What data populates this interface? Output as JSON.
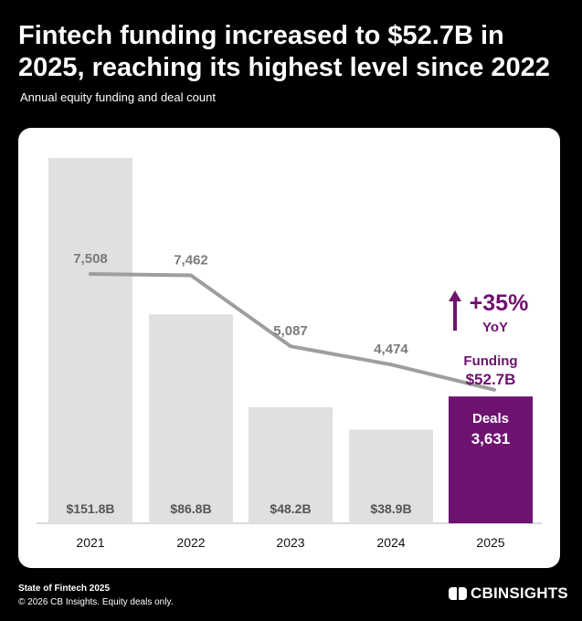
{
  "header": {
    "title": "Fintech funding increased to $52.7B in 2025, reaching its highest level since 2022",
    "subtitle": "Annual equity funding and deal count"
  },
  "colors": {
    "background": "#000000",
    "bar": "#e0e0e0",
    "highlight_bar": "#6e1270",
    "line": "#9e9e9e",
    "label_gray": "#7a7a7a",
    "accent_text": "#6e1270"
  },
  "chart_data": {
    "type": "bar",
    "title": "Annual equity funding and deal count",
    "categories": [
      "2021",
      "2022",
      "2023",
      "2024",
      "2025"
    ],
    "series": [
      {
        "name": "Funding ($B)",
        "type": "bar",
        "values": [
          151.8,
          86.8,
          48.2,
          38.9,
          52.7
        ],
        "labels": [
          "$151.8B",
          "$86.8B",
          "$48.2B",
          "$38.9B",
          "$52.7B"
        ]
      },
      {
        "name": "Deals",
        "type": "line",
        "values": [
          7508,
          7462,
          5087,
          4474,
          3631
        ],
        "labels": [
          "7,508",
          "7,462",
          "5,087",
          "4,474",
          "3,631"
        ]
      }
    ],
    "ylim_funding": [
      0,
      160
    ],
    "ylim_deals": [
      0,
      10000
    ],
    "highlight_category": "2025",
    "annotations": {
      "yoy_value": "+35%",
      "yoy_label": "YoY",
      "funding_label": "Funding",
      "funding_value": "$52.7B",
      "deals_label": "Deals",
      "deals_value": "3,631"
    }
  },
  "footer": {
    "line1": "State of Fintech 2025",
    "line2": "© 2026 CB Insights. Equity deals only.",
    "logo_text": "CBINSIGHTS"
  }
}
